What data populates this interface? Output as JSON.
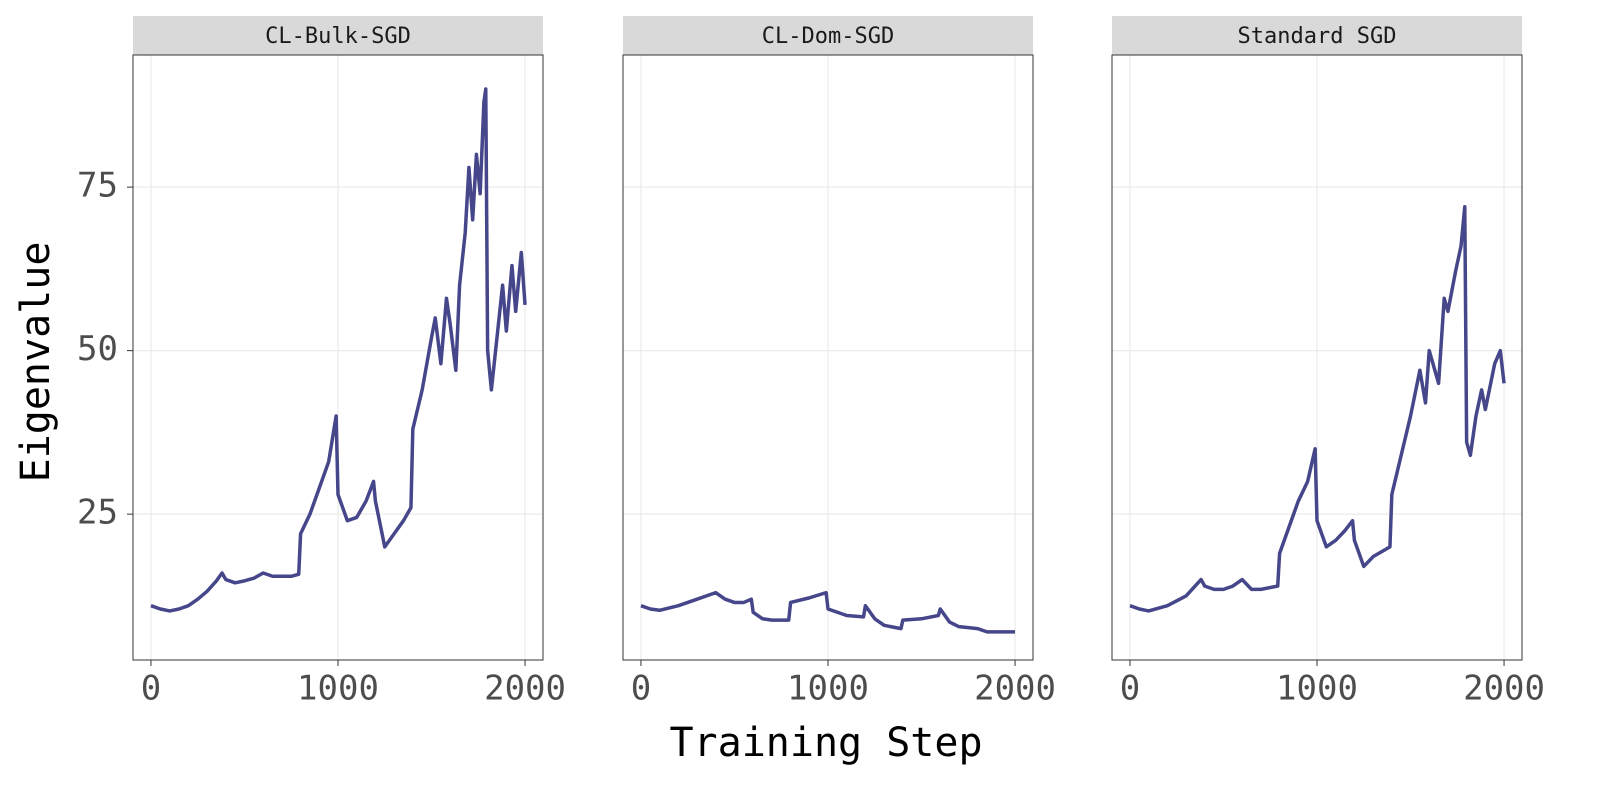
{
  "chart_data": {
    "type": "line",
    "x_label": "Training Step",
    "y_label": "Eigenvalue",
    "color": "#46468a",
    "grid": true,
    "xlim": [
      -96,
      2096
    ],
    "ylim": [
      2.7,
      95.2
    ],
    "xticks": [
      0,
      1000,
      2000
    ],
    "yticks": [
      25,
      50,
      75
    ],
    "panels": [
      {
        "title": "CL-Bulk-SGD",
        "x": [
          0,
          50,
          100,
          150,
          200,
          250,
          300,
          350,
          380,
          400,
          450,
          500,
          550,
          600,
          650,
          700,
          750,
          790,
          800,
          850,
          900,
          950,
          990,
          1000,
          1050,
          1100,
          1150,
          1190,
          1200,
          1250,
          1300,
          1350,
          1390,
          1400,
          1450,
          1500,
          1520,
          1550,
          1580,
          1600,
          1630,
          1650,
          1680,
          1700,
          1720,
          1740,
          1760,
          1780,
          1790,
          1800,
          1820,
          1850,
          1880,
          1900,
          1930,
          1950,
          1980,
          2000
        ],
        "values": [
          11,
          10.5,
          10.2,
          10.5,
          11,
          12,
          13.2,
          14.8,
          16,
          15,
          14.5,
          14.8,
          15.2,
          16,
          15.5,
          15.5,
          15.5,
          15.8,
          22,
          25,
          29,
          33,
          40,
          28,
          24,
          24.5,
          27,
          30,
          27,
          20,
          22,
          24,
          26,
          38,
          44,
          52,
          55,
          48,
          58,
          54,
          47,
          60,
          68,
          78,
          70,
          80,
          74,
          88,
          90,
          50,
          44,
          52,
          60,
          53,
          63,
          56,
          65,
          57
        ]
      },
      {
        "title": "CL-Dom-SGD",
        "x": [
          0,
          50,
          100,
          200,
          300,
          400,
          450,
          500,
          550,
          590,
          600,
          650,
          700,
          790,
          800,
          900,
          990,
          1000,
          1050,
          1100,
          1190,
          1200,
          1250,
          1300,
          1390,
          1400,
          1500,
          1590,
          1600,
          1650,
          1700,
          1800,
          1850,
          1900,
          2000
        ],
        "values": [
          11,
          10.5,
          10.3,
          11,
          12,
          13,
          12,
          11.5,
          11.5,
          12,
          10,
          9,
          8.8,
          8.8,
          11.5,
          12.2,
          13,
          10.5,
          10,
          9.5,
          9.3,
          11,
          9,
          8,
          7.5,
          8.8,
          9,
          9.5,
          10.5,
          8.5,
          7.8,
          7.5,
          7,
          7,
          7
        ]
      },
      {
        "title": "Standard SGD",
        "x": [
          0,
          50,
          100,
          200,
          300,
          380,
          400,
          450,
          500,
          550,
          600,
          650,
          700,
          790,
          800,
          850,
          900,
          950,
          990,
          1000,
          1050,
          1100,
          1150,
          1190,
          1200,
          1250,
          1300,
          1390,
          1400,
          1450,
          1500,
          1550,
          1580,
          1600,
          1650,
          1680,
          1700,
          1740,
          1770,
          1790,
          1800,
          1820,
          1850,
          1880,
          1900,
          1950,
          1980,
          2000
        ],
        "values": [
          11,
          10.5,
          10.2,
          11,
          12.5,
          15,
          14,
          13.5,
          13.5,
          14,
          15,
          13.5,
          13.5,
          14,
          19,
          23,
          27,
          30,
          35,
          24,
          20,
          21,
          22.5,
          24,
          21,
          17,
          18.5,
          20,
          28,
          34,
          40,
          47,
          42,
          50,
          45,
          58,
          56,
          62,
          66,
          72,
          36,
          34,
          40,
          44,
          41,
          48,
          50,
          45
        ]
      }
    ]
  }
}
